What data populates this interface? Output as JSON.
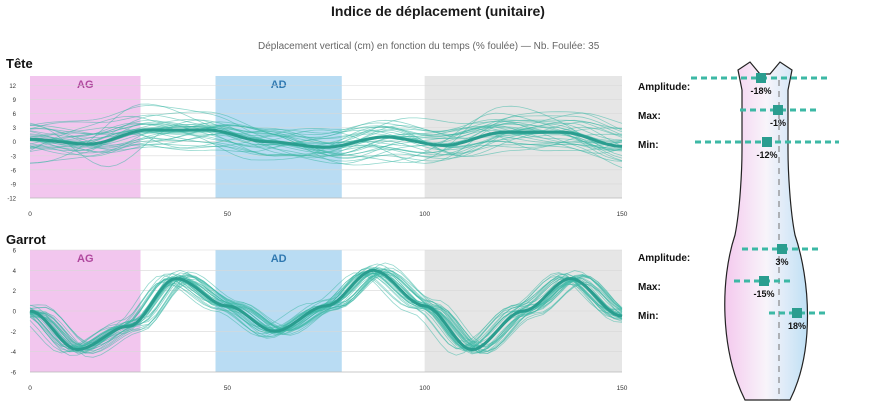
{
  "title": "Indice de déplacement (unitaire)",
  "subtitle": "Déplacement vertical (cm) en fonction du temps (% foulée) — Nb. Foulée: 35",
  "colors": {
    "ag": "#f2c6ee",
    "ad": "#b9dcf3",
    "grey": "#e6e6e6",
    "line": "#3cb8a5",
    "mean": "#2a9d8f"
  },
  "chart_data": [
    {
      "type": "line",
      "panel": "Tête",
      "xlim": [
        0,
        150
      ],
      "ylim": [
        -12,
        14
      ],
      "xticks": [
        "0",
        "50",
        "100",
        "150"
      ],
      "yticks": [
        "12",
        "9",
        "6",
        "3",
        "0",
        "-3",
        "-6",
        "-9",
        "-12"
      ],
      "bands": [
        {
          "label": "AG",
          "x0": 0,
          "x1": 28,
          "color": "ag"
        },
        {
          "label": "AD",
          "x0": 47,
          "x1": 79,
          "color": "ad"
        },
        {
          "label": "",
          "x0": 100,
          "x1": 150,
          "color": "grey"
        }
      ],
      "mean": {
        "x": [
          0,
          15,
          30,
          45,
          60,
          75,
          90,
          105,
          120,
          135,
          150
        ],
        "y": [
          0.5,
          -0.5,
          2.5,
          2.5,
          0,
          -1.2,
          1.0,
          -0.8,
          2.0,
          2.0,
          -1.0
        ]
      },
      "stride_count": 35,
      "spread": 4
    },
    {
      "type": "line",
      "panel": "Garrot",
      "xlim": [
        0,
        150
      ],
      "ylim": [
        -6,
        6
      ],
      "xticks": [
        "0",
        "50",
        "100",
        "150"
      ],
      "yticks": [
        "6",
        "4",
        "2",
        "0",
        "-2",
        "-4",
        "-6"
      ],
      "bands": [
        {
          "label": "AG",
          "x0": 0,
          "x1": 28,
          "color": "ag"
        },
        {
          "label": "AD",
          "x0": 47,
          "x1": 79,
          "color": "ad"
        },
        {
          "label": "",
          "x0": 100,
          "x1": 150,
          "color": "grey"
        }
      ],
      "mean": {
        "x": [
          0,
          12,
          25,
          37,
          50,
          62,
          75,
          87,
          100,
          112,
          125,
          137,
          150
        ],
        "y": [
          0,
          -3.8,
          -1.5,
          3.2,
          0.5,
          -2.0,
          0.5,
          4.0,
          0.5,
          -3.8,
          0,
          3.2,
          -0.5
        ]
      },
      "stride_count": 35,
      "spread": 0.6
    }
  ],
  "panels": {
    "head_title": "Tête",
    "withers_title": "Garrot"
  },
  "stats": {
    "head": [
      {
        "label": "Amplitude:",
        "value": "-18%",
        "num": -18
      },
      {
        "label": "Max:",
        "value": "-1%",
        "num": -1
      },
      {
        "label": "Min:",
        "value": "-12%",
        "num": -12
      }
    ],
    "withers": [
      {
        "label": "Amplitude:",
        "value": "3%",
        "num": 3
      },
      {
        "label": "Max:",
        "value": "-15%",
        "num": -15
      },
      {
        "label": "Min:",
        "value": "18%",
        "num": 18
      }
    ]
  }
}
